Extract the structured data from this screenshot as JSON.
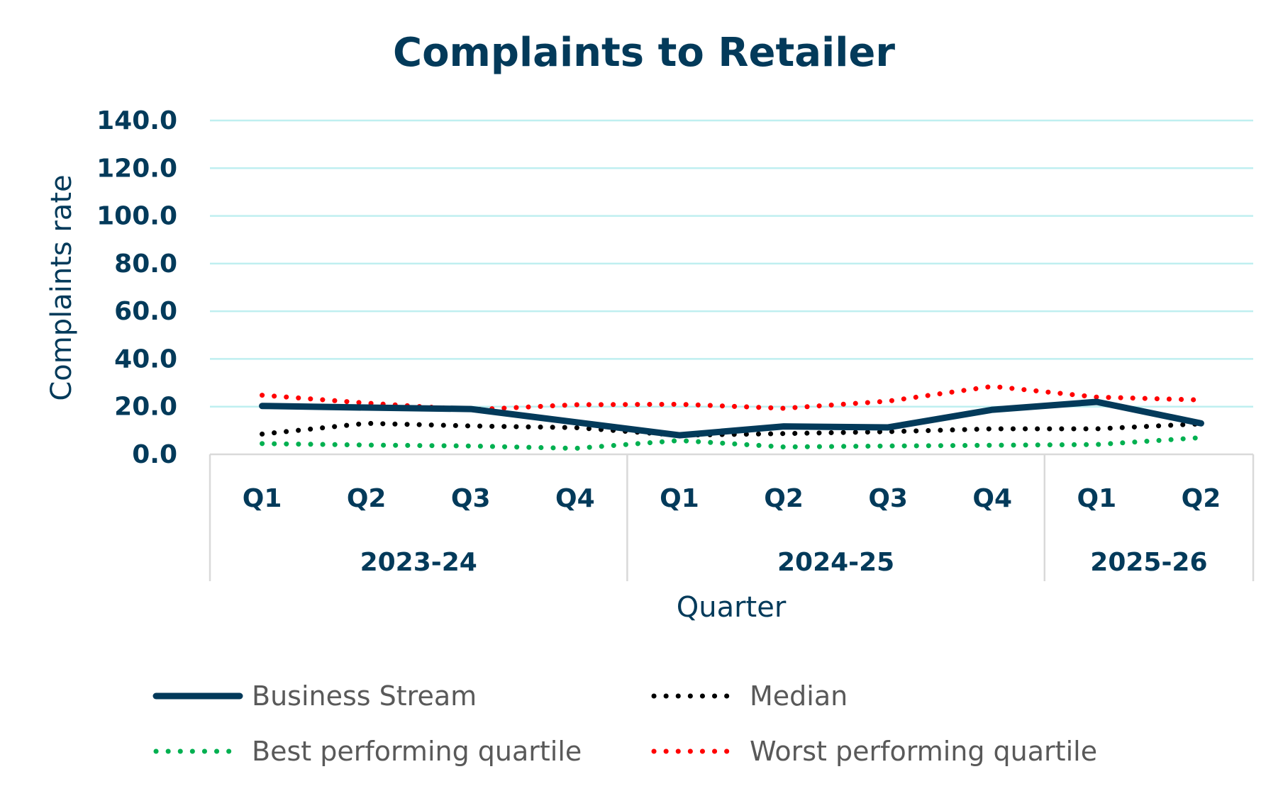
{
  "chart_data": {
    "type": "line",
    "title": "Complaints to Retailer",
    "xlabel": "Quarter",
    "ylabel": "Complaints rate",
    "ylim": [
      0,
      140
    ],
    "yticks": [
      "0.0",
      "20.0",
      "40.0",
      "60.0",
      "80.0",
      "100.0",
      "120.0",
      "140.0"
    ],
    "grid": true,
    "legend_position": "bottom",
    "categories": [
      "Q1",
      "Q2",
      "Q3",
      "Q4",
      "Q1",
      "Q2",
      "Q3",
      "Q4",
      "Q1",
      "Q2"
    ],
    "groups": [
      {
        "label": "2023-24",
        "span": 4
      },
      {
        "label": "2024-25",
        "span": 4
      },
      {
        "label": "2025-26",
        "span": 2
      }
    ],
    "series": [
      {
        "name": "Business Stream",
        "color": "#033A5A",
        "style": "solid",
        "values": [
          20.3,
          19.6,
          19.0,
          13.5,
          8.0,
          11.7,
          11.3,
          18.7,
          22.0,
          13.0
        ]
      },
      {
        "name": "Median",
        "color": "#000000",
        "style": "dotted",
        "values": [
          8.5,
          13.0,
          11.9,
          11.2,
          8.0,
          8.7,
          9.5,
          10.7,
          10.7,
          12.8
        ]
      },
      {
        "name": "Best performing quartile",
        "color": "#00B050",
        "style": "dotted",
        "values": [
          4.5,
          3.9,
          3.5,
          2.5,
          5.8,
          3.1,
          3.5,
          3.8,
          4.1,
          7.0
        ]
      },
      {
        "name": "Worst performing quartile",
        "color": "#FF0000",
        "style": "dotted",
        "values": [
          24.8,
          21.5,
          18.7,
          20.8,
          21.0,
          19.3,
          22.3,
          28.5,
          24.0,
          22.8
        ]
      }
    ],
    "colors": {
      "text": "#033A5A",
      "grid": "#BFEFF0",
      "axis": "#D9D9D9",
      "legend_text": "#595959"
    }
  }
}
